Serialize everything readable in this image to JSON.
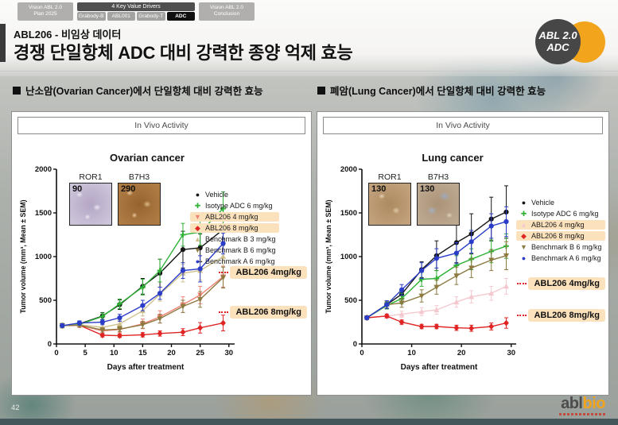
{
  "nav": {
    "tab_left": {
      "line1": "Vision ABL 2.0",
      "line2": "Plan 2025"
    },
    "group_title": "4 Key Value Drivers",
    "group_tabs": [
      "Grabody-B",
      "ABL001",
      "Grabody-T",
      "ADC"
    ],
    "active_tab": "ADC",
    "tab_right": {
      "line1": "Vision ABL 2.0",
      "line2": "Conclusion"
    }
  },
  "header": {
    "kicker": "ABL206 - 비임상 데이터",
    "title": "경쟁 단일항체 ADC 대비 강력한 종양 억제 효능",
    "badge": {
      "line1": "ABL 2.0",
      "line2": "ADC"
    }
  },
  "sections": [
    {
      "heading": "난소암(Ovarian Cancer)에서 단일항체 대비 강력한 효능"
    },
    {
      "heading": "폐암(Lung Cancer)에서 단일항체 대비 강력한 효능"
    }
  ],
  "panels": [
    {
      "box_label": "In Vivo Activity",
      "insets": [
        {
          "label": "ROR1",
          "score": "90"
        },
        {
          "label": "B7H3",
          "score": "290"
        }
      ],
      "callouts": [
        "ABL206 4mg/kg",
        "ABL206 8mg/kg"
      ]
    },
    {
      "box_label": "In Vivo Activity",
      "insets": [
        {
          "label": "ROR1",
          "score": "130"
        },
        {
          "label": "B7H3",
          "score": "130"
        }
      ],
      "callouts": [
        "ABL206 4mg/kg",
        "ABL206 8mg/kg"
      ]
    }
  ],
  "chart_data": [
    {
      "type": "line",
      "title": "Ovarian cancer",
      "xlabel": "Days after treatment",
      "ylabel": "Tumor volume (mm³, Mean ± SEM)",
      "xlim": [
        0,
        31
      ],
      "ylim": [
        0,
        2000
      ],
      "xticks": [
        0,
        5,
        10,
        15,
        20,
        25,
        30
      ],
      "yticks": [
        0,
        500,
        1000,
        1500,
        2000
      ],
      "legend_position": "right",
      "x": [
        1,
        4,
        8,
        11,
        15,
        18,
        22,
        25,
        29
      ],
      "series": [
        {
          "name": "Vehicle",
          "color": "#151515",
          "marker": "circle",
          "highlight": false,
          "values": [
            210,
            230,
            320,
            450,
            660,
            810,
            1080,
            1100,
            1310
          ],
          "err": [
            25,
            30,
            40,
            55,
            90,
            160,
            210,
            160,
            110
          ]
        },
        {
          "name": "Isotype ADC 6 mg/kg",
          "color": "#2eb135",
          "marker": "plus",
          "highlight": false,
          "values": [
            210,
            225,
            315,
            460,
            650,
            840,
            1250,
            1280,
            1550
          ],
          "err": [
            25,
            30,
            40,
            55,
            90,
            130,
            130,
            150,
            190
          ]
        },
        {
          "name": "ABL206 4 mg/kg",
          "color": "#ef8276",
          "marker": "tridown",
          "highlight": true,
          "values": [
            210,
            215,
            150,
            165,
            230,
            310,
            450,
            560,
            770
          ],
          "err": [
            20,
            25,
            30,
            35,
            55,
            70,
            90,
            100,
            120
          ]
        },
        {
          "name": "ABL206 8 mg/kg",
          "color": "#e02424",
          "marker": "diamond",
          "highlight": true,
          "values": [
            210,
            215,
            100,
            95,
            105,
            120,
            135,
            185,
            240
          ],
          "err": [
            20,
            20,
            20,
            20,
            25,
            30,
            40,
            60,
            90
          ]
        },
        {
          "name": "Benchmark B 3 mg/kg",
          "color": "#cfc08e",
          "marker": "triangle",
          "highlight": false,
          "values": [
            210,
            220,
            190,
            230,
            380,
            570,
            810,
            840,
            1000
          ],
          "err": [
            20,
            25,
            30,
            40,
            60,
            80,
            100,
            110,
            120
          ]
        },
        {
          "name": "Benchmark B 6 mg/kg",
          "color": "#8c7a40",
          "marker": "tridown",
          "highlight": false,
          "values": [
            210,
            215,
            160,
            170,
            220,
            290,
            430,
            510,
            760
          ],
          "err": [
            20,
            20,
            25,
            30,
            40,
            50,
            70,
            90,
            120
          ]
        },
        {
          "name": "Benchmark A 6 mg/kg",
          "color": "#2a3cc8",
          "marker": "circle",
          "highlight": false,
          "values": [
            210,
            240,
            250,
            300,
            440,
            580,
            840,
            860,
            1150
          ],
          "err": [
            20,
            25,
            30,
            40,
            60,
            70,
            90,
            150,
            120
          ]
        }
      ]
    },
    {
      "type": "line",
      "title": "Lung cancer",
      "xlabel": "Days after treatment",
      "ylabel": "Tumor volume (mm³, Mean ± SEM)",
      "xlim": [
        0,
        31
      ],
      "ylim": [
        0,
        2000
      ],
      "xticks": [
        0,
        10,
        20,
        30
      ],
      "yticks": [
        0,
        500,
        1000,
        1500,
        2000
      ],
      "legend_position": "right",
      "x": [
        1,
        5,
        8,
        12,
        15,
        19,
        22,
        26,
        29
      ],
      "series": [
        {
          "name": "Vehicle",
          "color": "#151515",
          "marker": "circle",
          "highlight": false,
          "values": [
            300,
            450,
            570,
            850,
            1010,
            1160,
            1260,
            1430,
            1510
          ],
          "err": [
            20,
            40,
            60,
            90,
            170,
            230,
            230,
            250,
            300
          ]
        },
        {
          "name": "Isotype ADC 6 mg/kg",
          "color": "#2eb135",
          "marker": "plus",
          "highlight": false,
          "values": [
            300,
            440,
            520,
            740,
            750,
            900,
            970,
            1060,
            1120
          ],
          "err": [
            20,
            40,
            60,
            80,
            90,
            110,
            120,
            130,
            140
          ]
        },
        {
          "name": "ABL206  4 mg/kg",
          "color": "#f3c9cf",
          "marker": "triangle",
          "highlight": true,
          "values": [
            300,
            320,
            340,
            370,
            390,
            480,
            540,
            580,
            660
          ],
          "err": [
            15,
            25,
            35,
            45,
            50,
            60,
            70,
            80,
            90
          ]
        },
        {
          "name": "ABL206  8 mg/kg",
          "color": "#e02424",
          "marker": "diamond",
          "highlight": true,
          "values": [
            300,
            320,
            250,
            200,
            200,
            185,
            180,
            200,
            240
          ],
          "err": [
            15,
            20,
            25,
            25,
            25,
            30,
            35,
            40,
            60
          ]
        },
        {
          "name": "Benchmark B 6 mg/kg",
          "color": "#8c7a40",
          "marker": "tridown",
          "highlight": false,
          "values": [
            300,
            450,
            470,
            550,
            650,
            780,
            870,
            960,
            1010
          ],
          "err": [
            20,
            40,
            50,
            70,
            80,
            100,
            110,
            120,
            160
          ]
        },
        {
          "name": "Benchmark A 6 mg/kg",
          "color": "#2a3cc8",
          "marker": "circle",
          "highlight": false,
          "values": [
            300,
            450,
            620,
            840,
            980,
            1040,
            1170,
            1350,
            1400
          ],
          "err": [
            20,
            45,
            60,
            90,
            110,
            120,
            130,
            140,
            170
          ]
        }
      ]
    }
  ],
  "footer": {
    "page": "42",
    "logo_abl": "abl",
    "logo_bio": "bio"
  }
}
